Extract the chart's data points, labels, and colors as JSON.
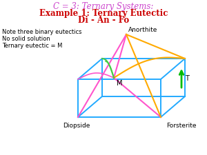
{
  "title_line1": "C = 3: Ternary Systems:",
  "title_line2": "Example 1: Ternary Eutectic",
  "title_line3": "Di - An - Fo",
  "title_color1": "#cc44cc",
  "title_color2": "#cc0000",
  "note_lines": [
    "Note three binary eutectics",
    "No solid solution",
    "Ternary eutectic = M"
  ],
  "label_anorthite": "Anorthite",
  "label_diopside": "Diopside",
  "label_forsterite": "Forsterite",
  "label_M": "M",
  "label_T": "T",
  "bg_color": "#ffffff",
  "box_color": "#22aaff",
  "pink_color": "#ff55cc",
  "orange_color": "#ffaa00",
  "green_color": "#44cc44",
  "arrow_color": "#00bb00"
}
